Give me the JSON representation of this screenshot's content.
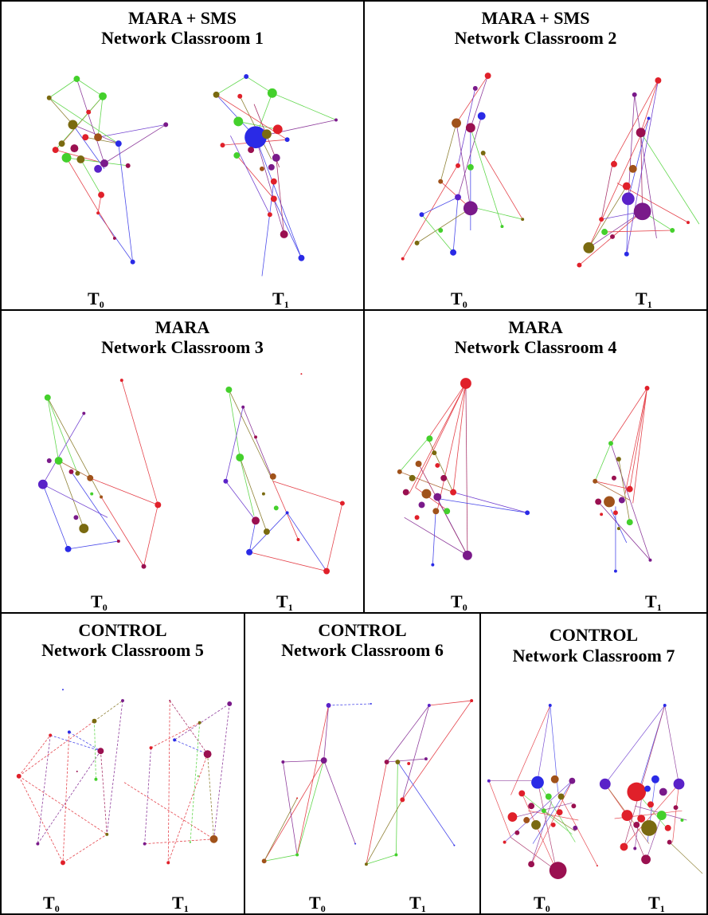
{
  "panels": [
    {
      "title1": "MARA + SMS",
      "title2": "Network Classroom 1",
      "t0": "T",
      "t1": "T",
      "t0sub": "0",
      "t1sub": "1"
    },
    {
      "title1": "MARA + SMS",
      "title2": "Network Classroom 2",
      "t0": "T",
      "t1": "T",
      "t0sub": "0",
      "t1sub": "1"
    },
    {
      "title1": "MARA",
      "title2": "Network Classroom 3",
      "t0": "T",
      "t1": "T",
      "t0sub": "0",
      "t1sub": "1"
    },
    {
      "title1": "MARA",
      "title2": "Network Classroom 4",
      "t0": "T",
      "t1": "T",
      "t0sub": "0",
      "t1sub": "1"
    },
    {
      "title1": "CONTROL",
      "title2": "Network Classroom 5",
      "t0": "T",
      "t1": "T",
      "t0sub": "0",
      "t1sub": "1"
    },
    {
      "title1": "CONTROL",
      "title2": "Network Classroom 6",
      "t0": "T",
      "t1": "T",
      "t0sub": "0",
      "t1sub": "1"
    },
    {
      "title1": "CONTROL",
      "title2": "Network Classroom 7",
      "t0": "T",
      "t1": "T",
      "t0sub": "0",
      "t1sub": "1"
    }
  ],
  "colors": {
    "red": "#e0202a",
    "green": "#44d02c",
    "blue": "#2a2ae6",
    "purple": "#7a1a8a",
    "olive": "#7a6a10",
    "brown": "#a0521a",
    "maroon": "#9a1050",
    "violet": "#5a22c8"
  }
}
